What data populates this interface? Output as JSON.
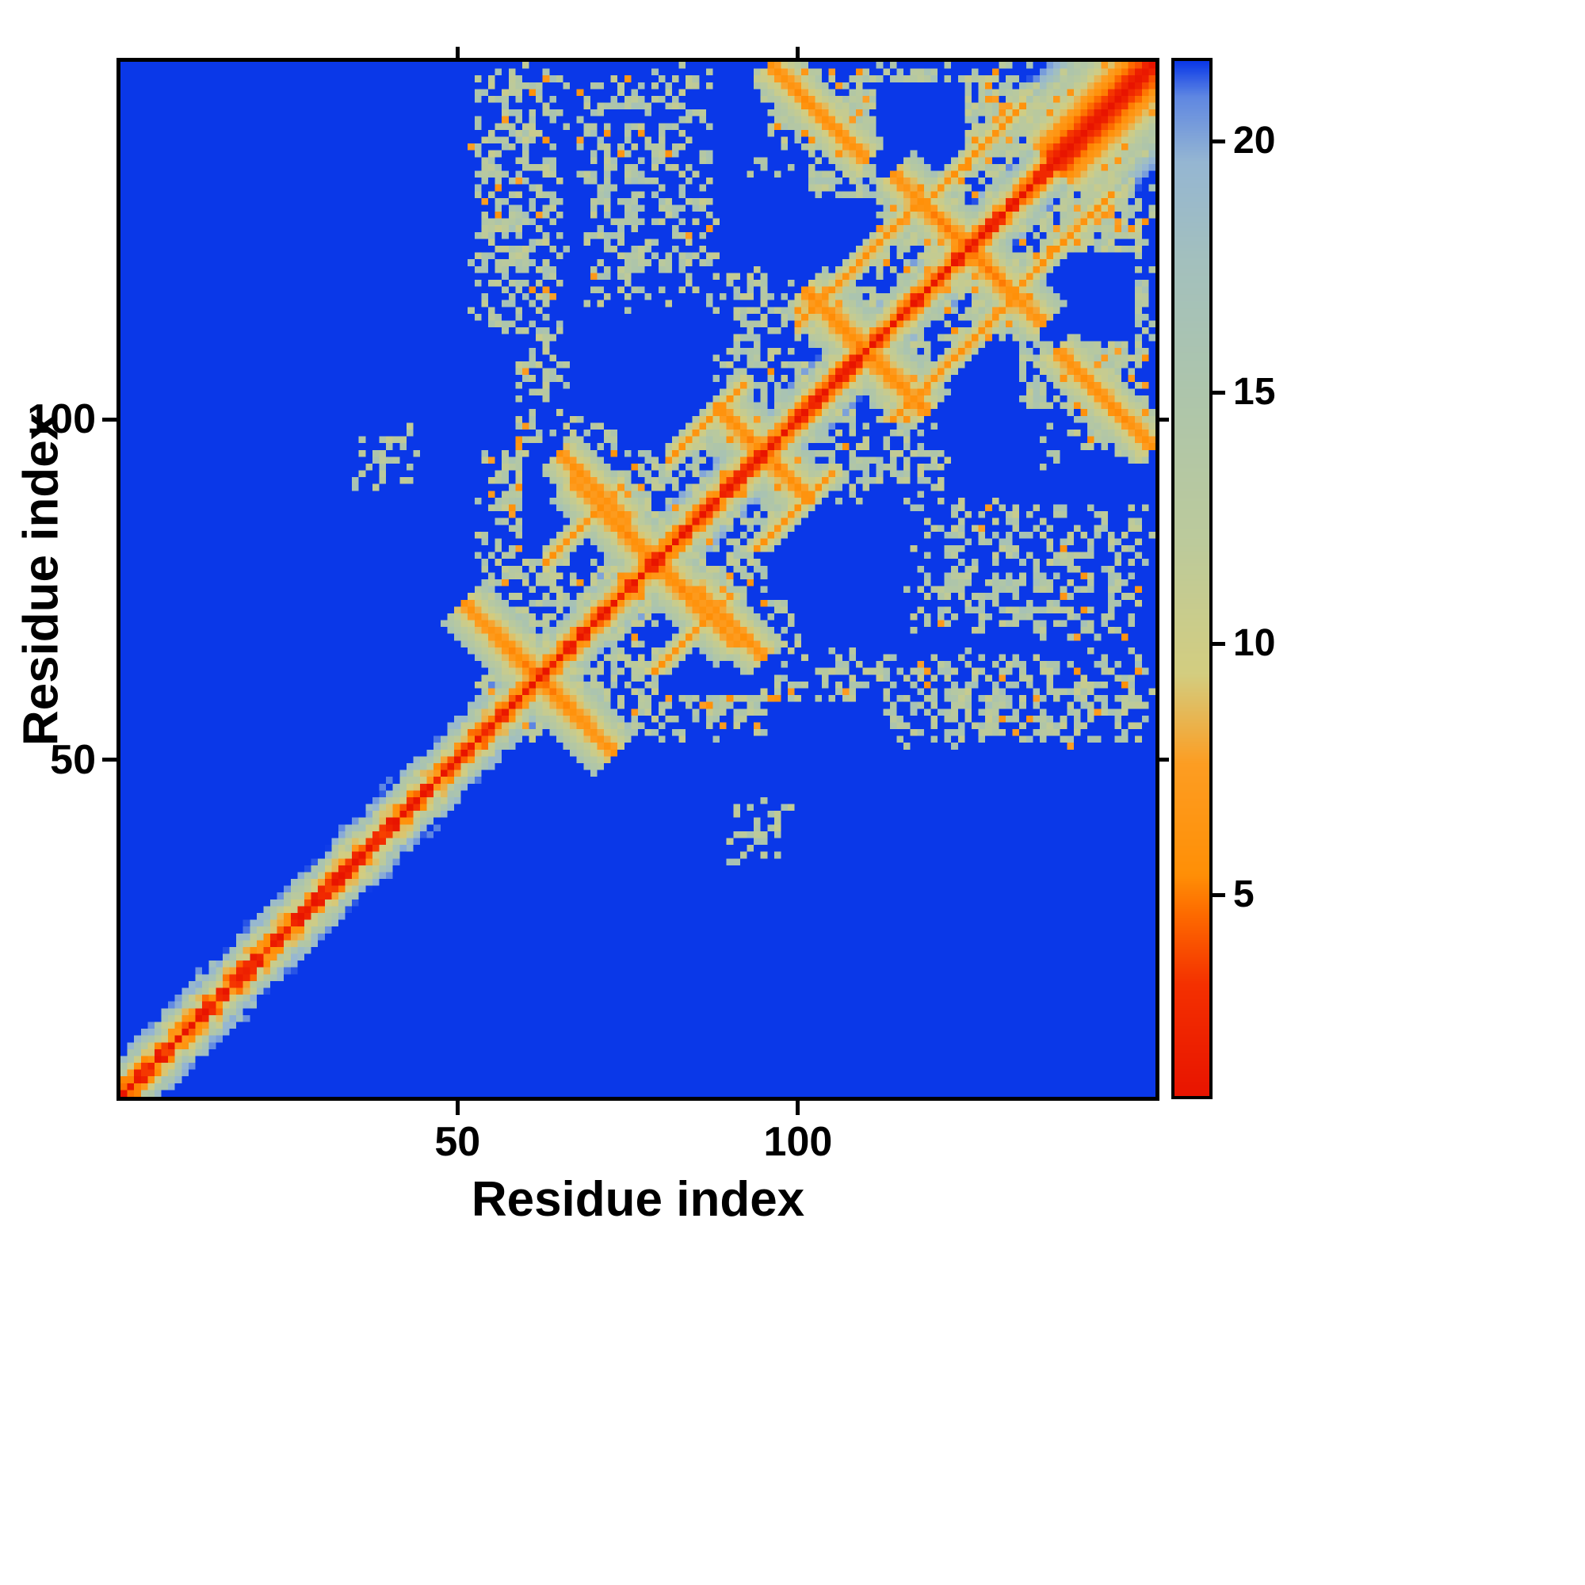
{
  "figure": {
    "background": "#ffffff",
    "frame_color": "#000000"
  },
  "chart_data": {
    "type": "heatmap",
    "title": "",
    "xlabel": "Residue index",
    "ylabel": "Residue index",
    "n_residues": 152,
    "x_range": [
      1,
      152
    ],
    "y_range": [
      1,
      152
    ],
    "x_ticks": [
      50,
      100
    ],
    "y_ticks": [
      50,
      100
    ],
    "grid": false,
    "legend": "none",
    "background_value": 22,
    "value_domain": [
      1,
      21.6
    ],
    "colorbar": {
      "position": "right",
      "ticks": [
        5,
        10,
        15,
        20
      ]
    },
    "color_stops": [
      [
        1.0,
        "#e81400"
      ],
      [
        3.2,
        "#f43000"
      ],
      [
        4.6,
        "#fd6a00"
      ],
      [
        5.4,
        "#ff8f06"
      ],
      [
        7.6,
        "#fd9d22"
      ],
      [
        9.4,
        "#d3cd80"
      ],
      [
        12.0,
        "#bcca9b"
      ],
      [
        15.0,
        "#adc5ab"
      ],
      [
        17.6,
        "#a3c0bd"
      ],
      [
        19.6,
        "#95b6d2"
      ],
      [
        20.9,
        "#5f87e2"
      ],
      [
        21.6,
        "#0a38e8"
      ]
    ],
    "seed": 1337,
    "matrix_model": {
      "description": "Symmetric residue-residue distance map (~152 residues). Red main diagonal with orange/green flanks, anti-diagonal hairpin crossings, off-diagonal contact clusters; far pairs saturate to blue (>21).",
      "diagonal_segments": [
        {
          "from": 1,
          "to": 56,
          "min": 1.0,
          "per_step": 3.2,
          "noise": 2.4
        },
        {
          "from": 56,
          "to": 138,
          "min": 1.0,
          "per_step": 3.3,
          "noise": 1.3
        },
        {
          "from": 138,
          "to": 152,
          "min": 1.0,
          "per_step": 1.3,
          "noise": 0.35
        }
      ],
      "hairpins": [
        {
          "center": 62,
          "halflen": 11,
          "base": 5.0
        },
        {
          "center": 79,
          "halflen": 12,
          "base": 5.0
        },
        {
          "center": 95,
          "halflen": 7,
          "base": 5.4
        },
        {
          "center": 110,
          "halflen": 9,
          "base": 5.0
        },
        {
          "center": 125,
          "halflen": 11,
          "base": 5.0
        }
      ],
      "antidiagonals": [
        {
          "ci": 103,
          "cj": 145,
          "halflen": 7,
          "base": 5.8
        },
        {
          "ci": 70,
          "cj": 90,
          "halflen": 5,
          "base": 6.0
        }
      ],
      "parallels": [
        {
          "from": 100,
          "to": 117,
          "offset": 14,
          "base": 5.8
        },
        {
          "from": 118,
          "to": 133,
          "offset": 13,
          "base": 6.0
        },
        {
          "from": 63,
          "to": 74,
          "offset": 16,
          "base": 6.2
        },
        {
          "from": 81,
          "to": 92,
          "offset": 13,
          "base": 6.2
        }
      ],
      "contact_blobs": [
        {
          "i": [
            53,
            100
          ],
          "j": [
            53,
            100
          ],
          "coverage": 0.52,
          "orange_frac": 0.07
        },
        {
          "i": [
            100,
            152
          ],
          "j": [
            100,
            152
          ],
          "coverage": 0.5,
          "orange_frac": 0.08
        },
        {
          "i": [
            52,
            66
          ],
          "j": [
            100,
            152
          ],
          "coverage": 0.5,
          "orange_frac": 0.06
        },
        {
          "i": [
            68,
            88
          ],
          "j": [
            116,
            152
          ],
          "coverage": 0.45,
          "orange_frac": 0.06
        },
        {
          "i": [
            88,
            100
          ],
          "j": [
            100,
            122
          ],
          "coverage": 0.5,
          "orange_frac": 0.05
        },
        {
          "i": [
            93,
            140
          ],
          "j": [
            136,
            152
          ],
          "coverage": 0.45,
          "orange_frac": 0.07
        },
        {
          "i": [
            35,
            45
          ],
          "j": [
            90,
            99
          ],
          "coverage": 0.5,
          "orange_frac": 0.04
        }
      ],
      "holes": [
        {
          "i": [
            60,
            74
          ],
          "j": [
            80,
            94
          ]
        },
        {
          "i": [
            44,
            58
          ],
          "j": [
            96,
            112
          ]
        },
        {
          "i": [
            112,
            124
          ],
          "j": [
            136,
            149
          ]
        },
        {
          "i": [
            100,
            111
          ],
          "j": [
            120,
            132
          ]
        },
        {
          "i": [
            74,
            84
          ],
          "j": [
            96,
            108
          ]
        }
      ]
    }
  }
}
